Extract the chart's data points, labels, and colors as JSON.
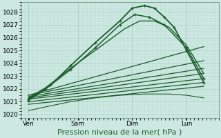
{
  "xlabel": "Pression niveau de la mer( hPa )",
  "bg_color": "#cce8e0",
  "grid_major_color": "#a8cfc8",
  "grid_minor_color": "#b8d8d2",
  "line_color": "#1a5c2a",
  "ylim": [
    1019.75,
    1028.75
  ],
  "yticks": [
    1020,
    1021,
    1022,
    1023,
    1024,
    1025,
    1026,
    1027,
    1028
  ],
  "xlim": [
    0,
    4.0
  ],
  "xtick_labels": [
    "Ven",
    "Sam",
    "Dim",
    "Lun"
  ],
  "xtick_pos": [
    0.15,
    1.15,
    2.25,
    3.35
  ],
  "vlines": [
    0.15,
    1.15,
    2.25,
    3.35
  ],
  "lines": [
    {
      "x": [
        0.15,
        0.6,
        1.0,
        1.5,
        2.0,
        2.25,
        2.5,
        2.7,
        2.9,
        3.1,
        3.35,
        3.7
      ],
      "y": [
        1021.1,
        1022.3,
        1023.8,
        1025.6,
        1027.3,
        1028.3,
        1028.5,
        1028.3,
        1027.6,
        1026.8,
        1025.0,
        1022.5
      ],
      "lw": 1.3,
      "style": "-",
      "marker": "+",
      "ms": 3.5
    },
    {
      "x": [
        0.15,
        0.5,
        1.0,
        1.5,
        2.0,
        2.3,
        2.6,
        2.9,
        3.35,
        3.7
      ],
      "y": [
        1021.2,
        1022.0,
        1023.5,
        1025.2,
        1027.0,
        1027.8,
        1027.6,
        1027.0,
        1025.2,
        1022.8
      ],
      "lw": 1.1,
      "style": "-",
      "marker": "+",
      "ms": 3.5
    },
    {
      "x": [
        0.15,
        0.5,
        1.0,
        1.5,
        2.1,
        2.4,
        2.7,
        3.0,
        3.35,
        3.7
      ],
      "y": [
        1021.3,
        1022.1,
        1023.6,
        1025.0,
        1026.7,
        1027.3,
        1027.3,
        1026.8,
        1025.4,
        1023.2
      ],
      "lw": 1.0,
      "style": "-",
      "marker": null,
      "ms": 0
    },
    {
      "x": [
        0.15,
        3.7
      ],
      "y": [
        1021.5,
        1025.3
      ],
      "lw": 0.9,
      "style": "-",
      "marker": null,
      "ms": 0
    },
    {
      "x": [
        0.15,
        3.7
      ],
      "y": [
        1021.5,
        1024.2
      ],
      "lw": 0.9,
      "style": "-",
      "marker": null,
      "ms": 0
    },
    {
      "x": [
        0.15,
        3.7
      ],
      "y": [
        1021.4,
        1023.6
      ],
      "lw": 0.9,
      "style": "-",
      "marker": null,
      "ms": 0
    },
    {
      "x": [
        0.15,
        3.7
      ],
      "y": [
        1021.3,
        1023.2
      ],
      "lw": 0.9,
      "style": "-",
      "marker": null,
      "ms": 0
    },
    {
      "x": [
        0.15,
        3.7
      ],
      "y": [
        1021.2,
        1022.8
      ],
      "lw": 0.9,
      "style": "-",
      "marker": null,
      "ms": 0
    },
    {
      "x": [
        0.15,
        3.7
      ],
      "y": [
        1021.0,
        1022.5
      ],
      "lw": 0.9,
      "style": "-",
      "marker": null,
      "ms": 0
    },
    {
      "x": [
        0.15,
        3.7
      ],
      "y": [
        1020.8,
        1022.2
      ],
      "lw": 0.9,
      "style": "-",
      "marker": null,
      "ms": 0
    },
    {
      "x": [
        0.15,
        0.5,
        1.0,
        1.5,
        2.0,
        2.5,
        3.0,
        3.35,
        3.7
      ],
      "y": [
        1020.3,
        1020.6,
        1021.0,
        1021.3,
        1021.5,
        1021.6,
        1021.6,
        1021.5,
        1021.3
      ],
      "lw": 0.8,
      "style": "-",
      "marker": null,
      "ms": 0
    }
  ],
  "xlabel_fontsize": 8,
  "tick_fontsize": 6.5,
  "figsize": [
    3.2,
    2.0
  ],
  "dpi": 100
}
